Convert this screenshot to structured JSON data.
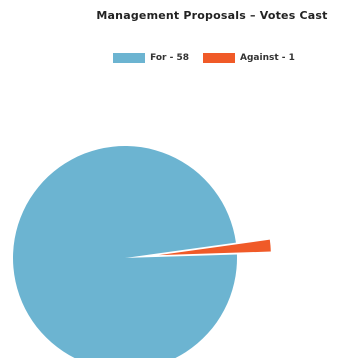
{
  "chart_data": {
    "type": "pie",
    "title": "Management Proposals – Votes Cast",
    "legend_position": "top",
    "slices": [
      {
        "label": "For - 58",
        "name": "For",
        "value": 58,
        "color": "#6CB4D1"
      },
      {
        "label": "Against - 1",
        "name": "Against",
        "value": 1,
        "color": "#F05A28"
      }
    ]
  }
}
